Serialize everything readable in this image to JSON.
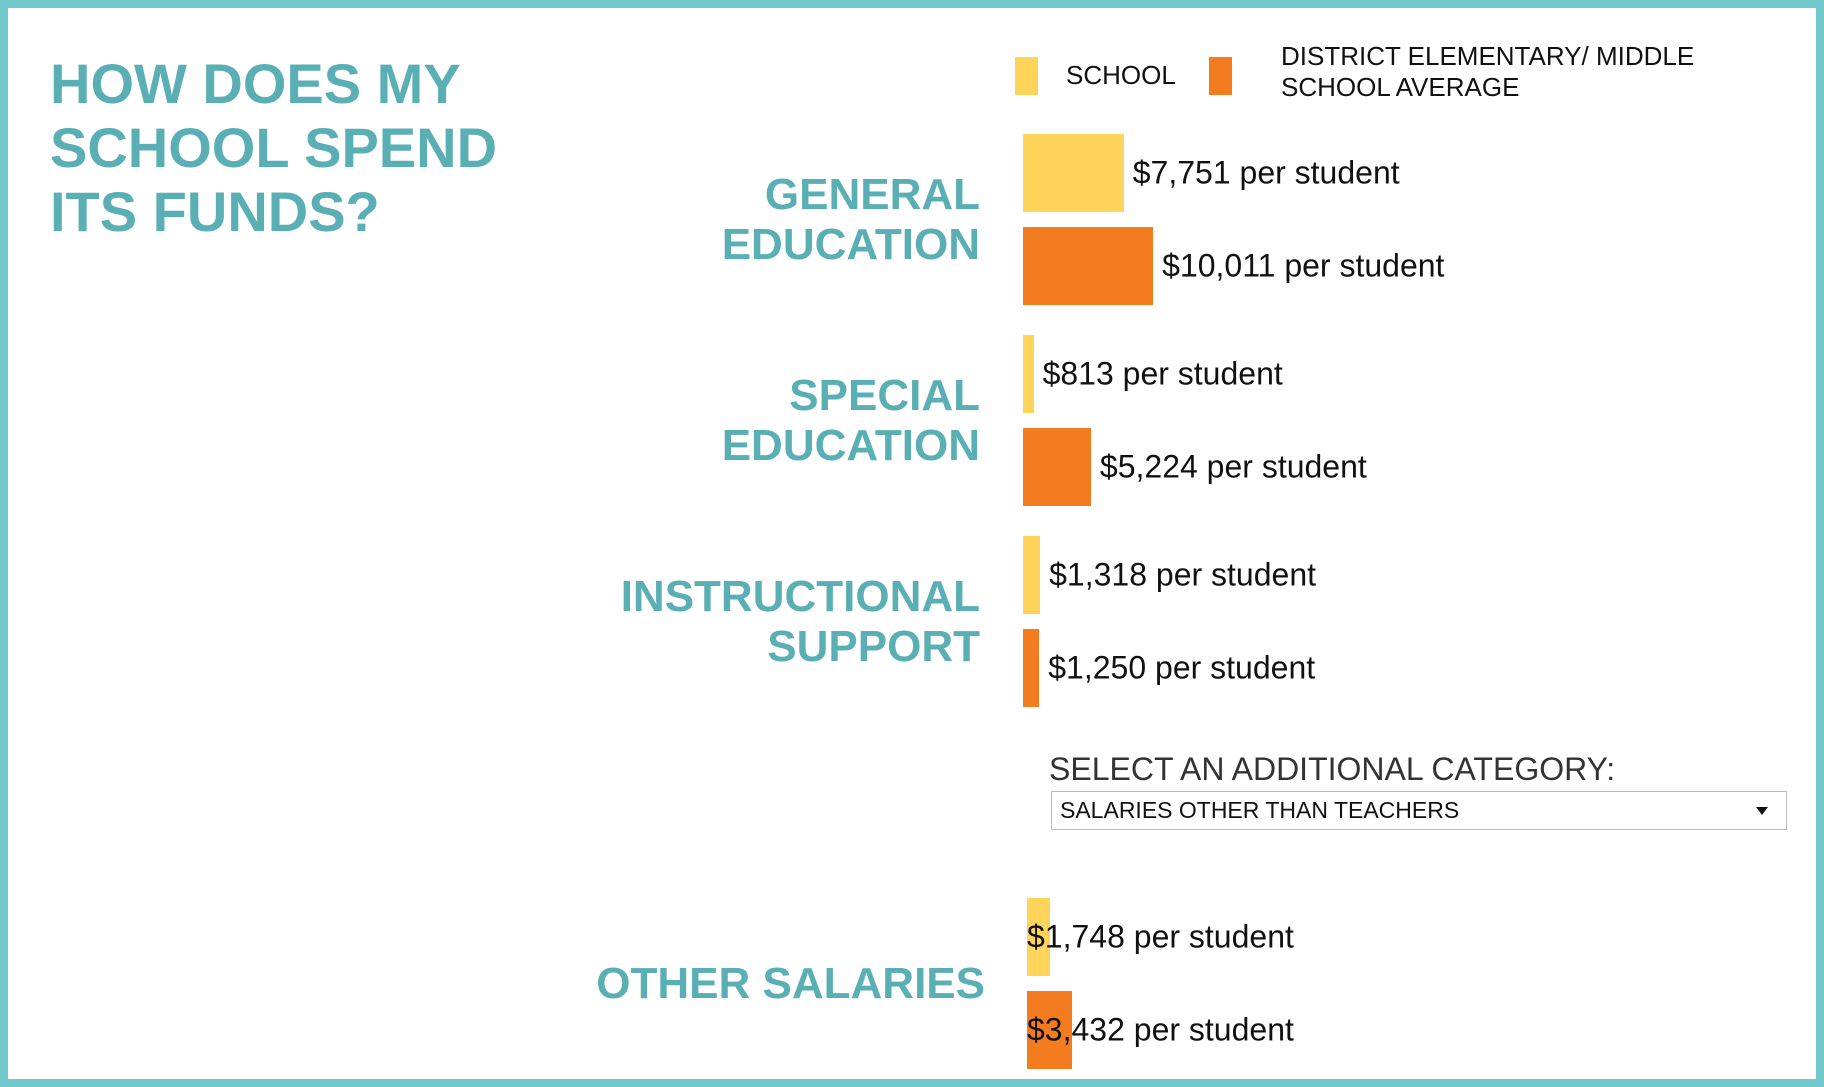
{
  "chart_data": {
    "type": "bar",
    "orientation": "horizontal",
    "title": "HOW DOES MY SCHOOL SPEND ITS FUNDS?",
    "categories": [
      "GENERAL EDUCATION",
      "SPECIAL EDUCATION",
      "INSTRUCTIONAL SUPPORT",
      "OTHER SALARIES"
    ],
    "series": [
      {
        "name": "SCHOOL",
        "color": "#ffd45a",
        "values": [
          7751,
          813,
          1318,
          1748
        ],
        "value_labels": [
          "$7,751 per student",
          "$813 per student",
          "$1,318 per student",
          "$1,748 per student"
        ]
      },
      {
        "name": "DISTRICT ELEMENTARY/ MIDDLE SCHOOL AVERAGE",
        "color": "#f47c20",
        "values": [
          10011,
          5224,
          1250,
          3432
        ],
        "value_labels": [
          "$10,011 per student",
          "$5,224 per student",
          "$1,250 per student",
          "$3,432 per student"
        ]
      }
    ],
    "selector_label": "SELECT AN ADDITIONAL CATEGORY:",
    "selector_value": "SALARIES OTHER THAN TEACHERS"
  }
}
